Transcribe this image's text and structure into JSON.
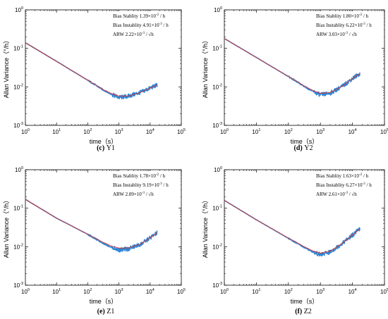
{
  "chart_data": [
    {
      "type": "line",
      "caption_letter": "(c)",
      "caption_name": "Y1",
      "xlabel": "time（s）",
      "ylabel": "Allan Variance（°/h）",
      "xscale": "log",
      "yscale": "log",
      "xlim": [
        1,
        100000
      ],
      "ylim": [
        0.001,
        1
      ],
      "x_ticks": [
        "10^0",
        "10^1",
        "10^2",
        "10^3",
        "10^4",
        "10^5"
      ],
      "y_ticks": [
        "10^-3",
        "10^-2",
        "10^-1",
        "10^0"
      ],
      "legend": [
        {
          "label": "Bias Stablity",
          "value": "1.39×10",
          "exp": "-2",
          "unit": "/ h"
        },
        {
          "label": "Bias Instablity",
          "value": "4.91×10",
          "exp": "-3",
          "unit": "/ h"
        },
        {
          "label": "ARW",
          "value": "2.22×10",
          "exp": "-3",
          "unit": "/ √h"
        }
      ],
      "series": [
        {
          "color": "#2e86d6",
          "x": [
            1,
            10,
            100,
            300,
            600,
            1000,
            2000,
            5000,
            10000,
            17000
          ],
          "y": [
            0.14,
            0.046,
            0.0148,
            0.0085,
            0.0063,
            0.0053,
            0.0057,
            0.0072,
            0.0093,
            0.0112
          ]
        },
        {
          "color": "#e0302a",
          "x": [
            1,
            10,
            100,
            300,
            600,
            1000,
            2000,
            5000,
            10000,
            17000
          ],
          "y": [
            0.14,
            0.046,
            0.015,
            0.0086,
            0.0066,
            0.0058,
            0.0058,
            0.0072,
            0.0093,
            0.0112
          ]
        }
      ]
    },
    {
      "type": "line",
      "caption_letter": "(d)",
      "caption_name": "Y2",
      "xlabel": "time（s）",
      "ylabel": "Allan Variance（°/h）",
      "xscale": "log",
      "yscale": "log",
      "xlim": [
        1,
        100000
      ],
      "ylim": [
        0.001,
        1
      ],
      "x_ticks": [
        "10^0",
        "10^1",
        "10^2",
        "10^3",
        "10^4",
        "10^5"
      ],
      "y_ticks": [
        "10^-3",
        "10^-2",
        "10^-1",
        "10^0"
      ],
      "legend": [
        {
          "label": "Bias Stablity",
          "value": "1.80×10",
          "exp": "-2",
          "unit": "/ h"
        },
        {
          "label": "Bias Instablity",
          "value": "6.22×10",
          "exp": "-3",
          "unit": "/ h"
        },
        {
          "label": "ARW",
          "value": "3.03×10",
          "exp": "-3",
          "unit": "/ √h"
        }
      ],
      "series": [
        {
          "color": "#2e86d6",
          "x": [
            1,
            10,
            100,
            300,
            600,
            1000,
            2000,
            5000,
            10000,
            17000
          ],
          "y": [
            0.18,
            0.058,
            0.0185,
            0.0105,
            0.0075,
            0.0062,
            0.0068,
            0.0105,
            0.0165,
            0.022
          ]
        },
        {
          "color": "#e0302a",
          "x": [
            1,
            10,
            100,
            300,
            600,
            1000,
            2000,
            5000,
            10000,
            17000
          ],
          "y": [
            0.18,
            0.058,
            0.0187,
            0.0108,
            0.0079,
            0.0068,
            0.0071,
            0.0106,
            0.0165,
            0.022
          ]
        }
      ]
    },
    {
      "type": "line",
      "caption_letter": "(e)",
      "caption_name": "Z1",
      "xlabel": "time（s）",
      "ylabel": "Allan Variance（°/h）",
      "xscale": "log",
      "yscale": "log",
      "xlim": [
        1,
        100000
      ],
      "ylim": [
        0.001,
        1
      ],
      "x_ticks": [
        "10^0",
        "10^1",
        "10^2",
        "10^3",
        "10^4",
        "10^5"
      ],
      "y_ticks": [
        "10^-3",
        "10^-2",
        "10^-1",
        "10^0"
      ],
      "legend": [
        {
          "label": "Bias Stablity",
          "value": "1.78×10",
          "exp": "-2",
          "unit": "/ h"
        },
        {
          "label": "Bias Instablity",
          "value": "9.19×10",
          "exp": "-3",
          "unit": "/ h"
        },
        {
          "label": "ARW",
          "value": "2.89×10",
          "exp": "-3",
          "unit": "/ √h"
        }
      ],
      "series": [
        {
          "color": "#2e86d6",
          "x": [
            1,
            10,
            100,
            300,
            600,
            1000,
            2000,
            5000,
            10000,
            17000
          ],
          "y": [
            0.17,
            0.055,
            0.021,
            0.0125,
            0.0095,
            0.0082,
            0.0088,
            0.0115,
            0.017,
            0.023
          ]
        },
        {
          "color": "#e0302a",
          "x": [
            1,
            10,
            100,
            300,
            600,
            1000,
            2000,
            5000,
            10000,
            17000
          ],
          "y": [
            0.17,
            0.055,
            0.021,
            0.0132,
            0.0103,
            0.0092,
            0.0093,
            0.0118,
            0.017,
            0.023
          ]
        }
      ]
    },
    {
      "type": "line",
      "caption_letter": "(f)",
      "caption_name": "Z2",
      "xlabel": "time（s）",
      "ylabel": "Allan Variance（°/h）",
      "xscale": "log",
      "yscale": "log",
      "xlim": [
        1,
        100000
      ],
      "ylim": [
        0.001,
        1
      ],
      "x_ticks": [
        "10^0",
        "10^1",
        "10^2",
        "10^3",
        "10^4",
        "10^5"
      ],
      "y_ticks": [
        "10^-3",
        "10^-2",
        "10^-1",
        "10^0"
      ],
      "legend": [
        {
          "label": "Bias Stablity",
          "value": "1.63×10",
          "exp": "-2",
          "unit": "/ h"
        },
        {
          "label": "Bias Instablity",
          "value": "6.27×10",
          "exp": "-3",
          "unit": "/ h"
        },
        {
          "label": "ARW",
          "value": "2.61×10",
          "exp": "-3",
          "unit": "/ √h"
        }
      ],
      "series": [
        {
          "color": "#2e86d6",
          "x": [
            1,
            10,
            100,
            300,
            600,
            1000,
            2000,
            5000,
            10000,
            17000
          ],
          "y": [
            0.16,
            0.05,
            0.0165,
            0.0098,
            0.0072,
            0.0062,
            0.0072,
            0.0125,
            0.02,
            0.029
          ]
        },
        {
          "color": "#e0302a",
          "x": [
            1,
            10,
            100,
            300,
            600,
            1000,
            2000,
            5000,
            10000,
            17000
          ],
          "y": [
            0.16,
            0.05,
            0.0168,
            0.0102,
            0.0077,
            0.0068,
            0.0076,
            0.0126,
            0.02,
            0.029
          ]
        }
      ]
    }
  ]
}
